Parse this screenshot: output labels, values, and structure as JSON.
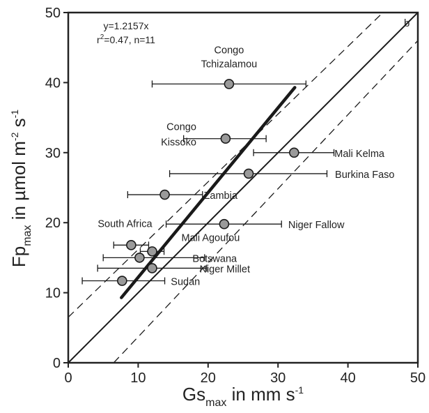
{
  "chart_data": {
    "type": "scatter",
    "panel_letter": "b",
    "xlabel": {
      "main": "Gs",
      "sub": "max",
      "rest": " in mm s",
      "sup": "-1"
    },
    "ylabel": {
      "main": "Fp",
      "sub": "max",
      "rest": " in µmol m",
      "sup1": "-2",
      "mid": " s",
      "sup2": "-1"
    },
    "xlim": [
      0,
      50
    ],
    "ylim": [
      0,
      50
    ],
    "xticks": [
      "0",
      "10",
      "20",
      "30",
      "40",
      "50"
    ],
    "yticks": [
      "0",
      "10",
      "20",
      "30",
      "40",
      "50"
    ],
    "annotation": {
      "equation": "y=1.2157x",
      "r2_prefix": "r",
      "r2_sup": "2",
      "r2_rest": "=0.47, n=11"
    },
    "points": [
      {
        "label": "Congo Tchizalamou",
        "label_lines": [
          "Congo",
          "Tchizalamou"
        ],
        "x": 23.0,
        "y": 39.8,
        "xerr": [
          12.0,
          34.0
        ]
      },
      {
        "label": "Congo Kissoko",
        "label_lines": [
          "Congo",
          "Kissoko"
        ],
        "x": 22.5,
        "y": 32.0,
        "xerr": [
          16.5,
          28.3
        ]
      },
      {
        "label": "Mali Kelma",
        "label_lines": [
          "Mali Kelma"
        ],
        "x": 32.3,
        "y": 30.0,
        "xerr": [
          26.5,
          38.0
        ]
      },
      {
        "label": "Burkina Faso",
        "label_lines": [
          "Burkina Faso"
        ],
        "x": 25.8,
        "y": 27.0,
        "xerr": [
          14.5,
          37.0
        ]
      },
      {
        "label": "Zambia",
        "label_lines": [
          "Zambia"
        ],
        "x": 13.8,
        "y": 24.0,
        "xerr": [
          8.5,
          19.2
        ]
      },
      {
        "label": "Niger Fallow",
        "label_lines": [
          "Niger Fallow"
        ],
        "x": 22.3,
        "y": 19.8,
        "xerr": [
          14.0,
          30.5
        ]
      },
      {
        "label": "South Africa",
        "label_lines": [
          "South Africa"
        ],
        "x": 9.0,
        "y": 16.8,
        "xerr": [
          6.5,
          11.5
        ]
      },
      {
        "label": "Mali Agoufou",
        "label_lines": [
          "Mali Agoufou"
        ],
        "x": 12.0,
        "y": 15.9,
        "xerr": [
          10.3,
          13.7
        ]
      },
      {
        "label": "Botswana",
        "label_lines": [
          "Botswana"
        ],
        "x": 10.2,
        "y": 15.0,
        "xerr": [
          5.0,
          19.5
        ]
      },
      {
        "label": "Niger Millet",
        "label_lines": [
          "Niger Millet"
        ],
        "x": 12.0,
        "y": 13.5,
        "xerr": [
          4.2,
          19.8
        ]
      },
      {
        "label": "Sudan",
        "label_lines": [
          "Sudan"
        ],
        "x": 7.7,
        "y": 11.7,
        "xerr": [
          2.0,
          13.8
        ]
      }
    ],
    "lines": [
      {
        "kind": "one-to-one",
        "style": "solid",
        "x1": 0,
        "y1": 0,
        "x2": 50,
        "y2": 50
      },
      {
        "kind": "regression",
        "style": "thick",
        "x1": 7.6,
        "y1": 9.3,
        "x2": 32.4,
        "y2": 39.3
      },
      {
        "kind": "offset-upper",
        "style": "dashed",
        "x1": 0,
        "y1": 6.5,
        "x2": 45,
        "y2": 50
      },
      {
        "kind": "offset-lower",
        "style": "dashed",
        "x1": 6.5,
        "y1": 0,
        "x2": 50,
        "y2": 46
      }
    ],
    "grid": false
  }
}
